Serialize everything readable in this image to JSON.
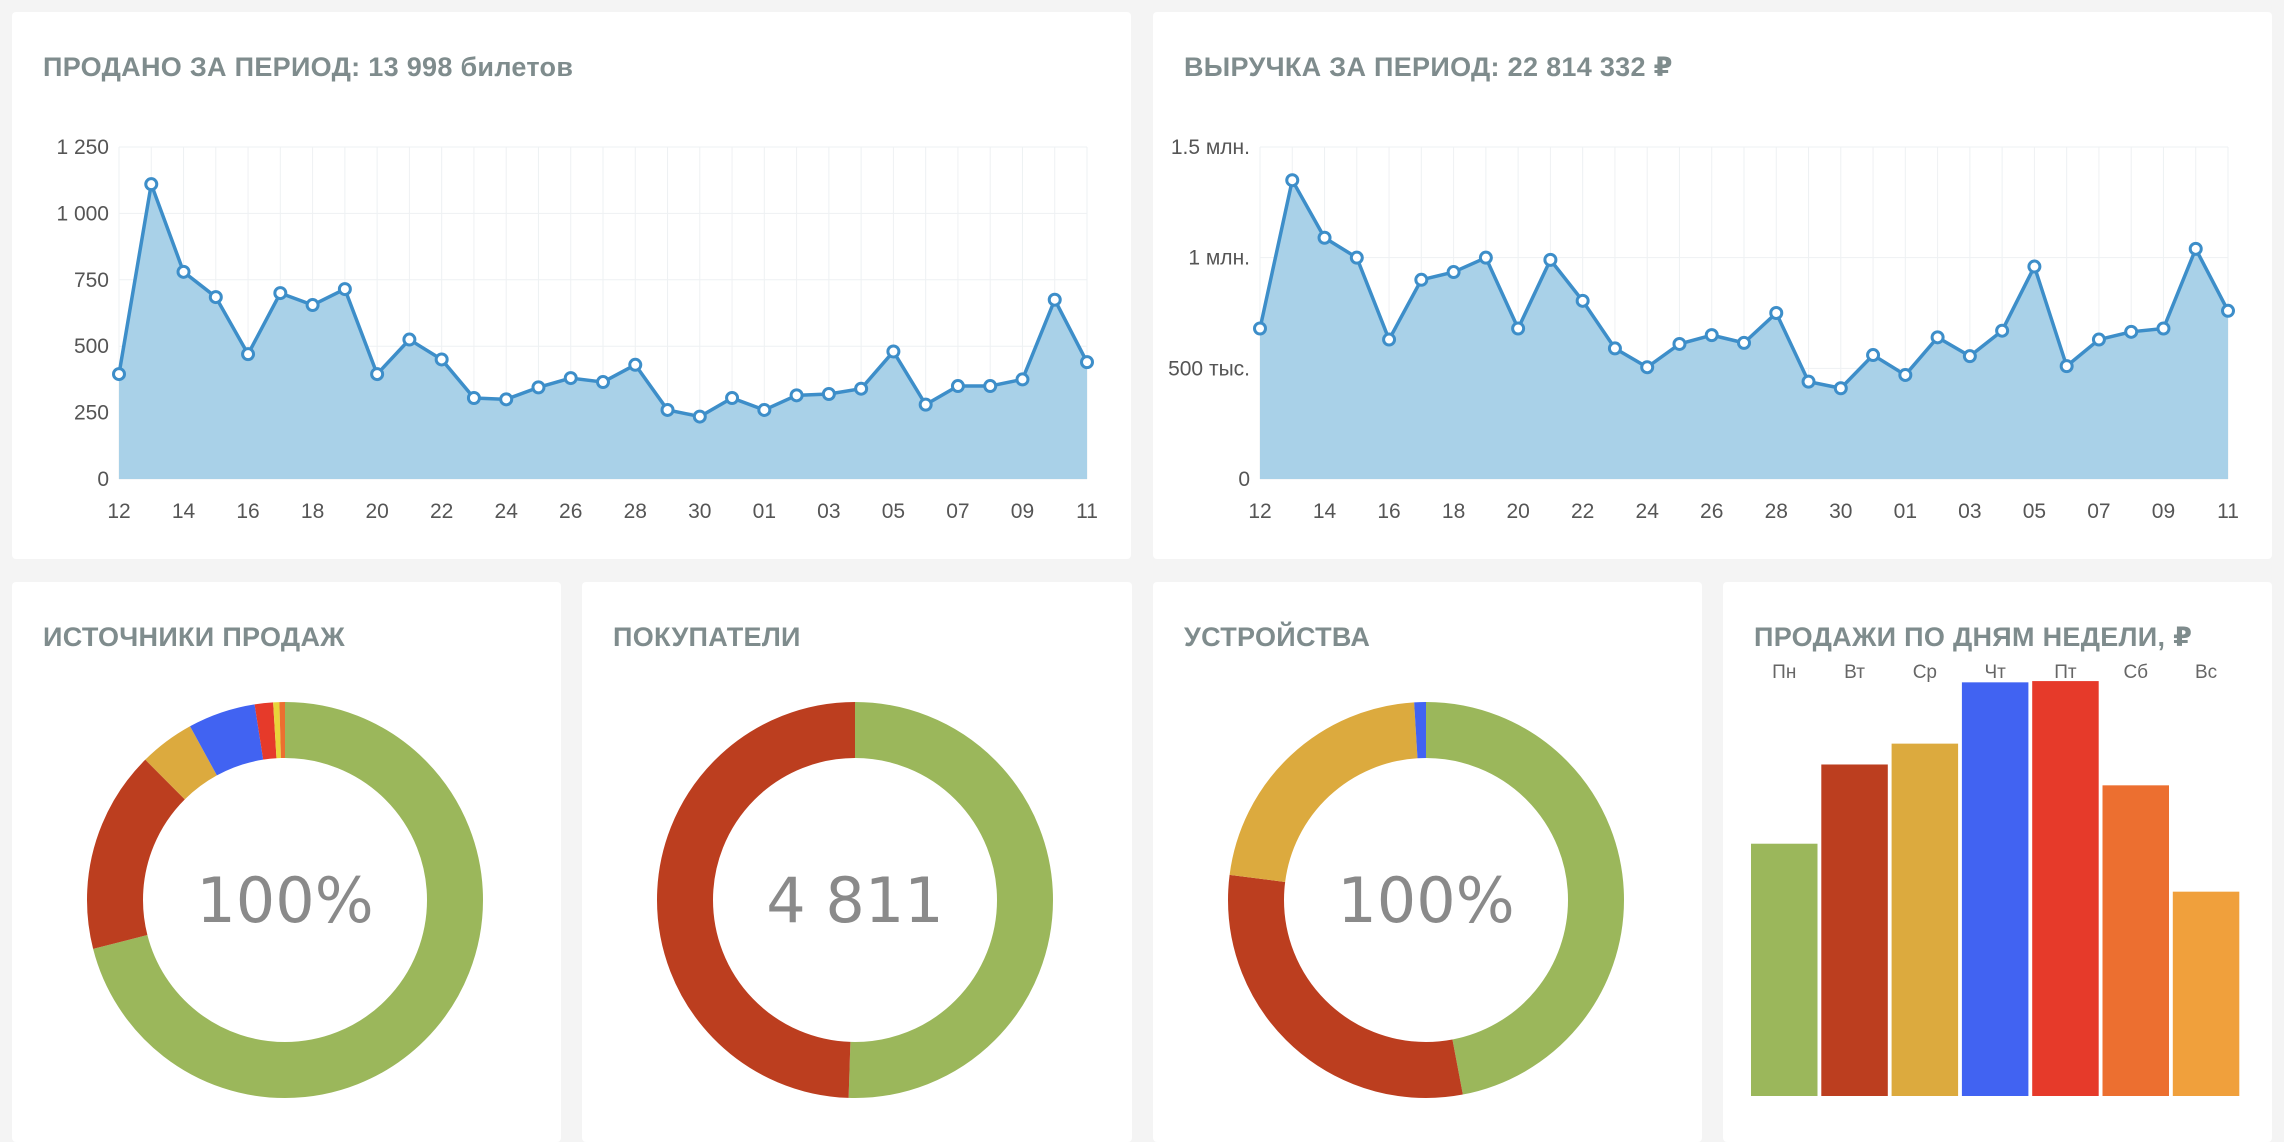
{
  "cards": {
    "tickets": {
      "title": "ПРОДАНО ЗА ПЕРИОД: 13 998 билетов"
    },
    "revenue": {
      "title": "ВЫРУЧКА ЗА ПЕРИОД: 22 814 332 ₽"
    },
    "sources": {
      "title": "ИСТОЧНИКИ ПРОДАЖ",
      "center": "100%"
    },
    "buyers": {
      "title": "ПОКУПАТЕЛИ",
      "center": "4 811"
    },
    "devices": {
      "title": "УСТРОЙСТВА",
      "center": "100%"
    },
    "weekdays": {
      "title": "ПРОДАЖИ ПО ДНЯМ НЕДЕЛИ, ₽"
    }
  },
  "colors": {
    "line": "#3d8ec9",
    "area": "#a9d1e8",
    "green": "#9bb75b",
    "rust": "#bc3e1f",
    "mustard": "#dcaa3e",
    "blue": "#4163f2",
    "red": "#e63a2a",
    "orange": "#ec6f30",
    "amber": "#f0a03c",
    "yellow": "#e8d43a"
  },
  "chart_data": [
    {
      "id": "tickets",
      "type": "area",
      "x_tick_labels": [
        "12",
        "14",
        "16",
        "18",
        "20",
        "22",
        "24",
        "26",
        "28",
        "30",
        "01",
        "03",
        "05",
        "07",
        "09",
        "11"
      ],
      "y_ticks": [
        0,
        250,
        500,
        750,
        1000,
        1250
      ],
      "y_tick_labels": [
        "0",
        "250",
        "500",
        "750",
        "1 000",
        "1 250"
      ],
      "ylim": [
        0,
        1250
      ],
      "grid": true,
      "values": [
        395,
        1110,
        780,
        685,
        470,
        700,
        655,
        715,
        395,
        525,
        450,
        305,
        300,
        345,
        380,
        365,
        430,
        260,
        235,
        305,
        260,
        315,
        320,
        340,
        480,
        280,
        350,
        350,
        375,
        675,
        440
      ]
    },
    {
      "id": "revenue",
      "type": "area",
      "x_tick_labels": [
        "12",
        "14",
        "16",
        "18",
        "20",
        "22",
        "24",
        "26",
        "28",
        "30",
        "01",
        "03",
        "05",
        "07",
        "09",
        "11"
      ],
      "y_ticks": [
        0,
        500000,
        1000000,
        1500000
      ],
      "y_tick_labels": [
        "0",
        "500 тыс.",
        "1 млн.",
        "1.5 млн."
      ],
      "ylim": [
        0,
        1500000
      ],
      "grid": true,
      "values": [
        680000,
        1350000,
        1090000,
        1000000,
        630000,
        900000,
        935000,
        1000000,
        680000,
        990000,
        805000,
        590000,
        505000,
        610000,
        650000,
        615000,
        750000,
        440000,
        410000,
        560000,
        470000,
        640000,
        555000,
        670000,
        960000,
        510000,
        630000,
        665000,
        680000,
        1040000,
        760000
      ]
    },
    {
      "id": "sources",
      "type": "pie",
      "donut": true,
      "values": [
        {
          "color": "green",
          "value": 71.0
        },
        {
          "color": "rust",
          "value": 16.5
        },
        {
          "color": "mustard",
          "value": 4.5
        },
        {
          "color": "blue",
          "value": 5.5
        },
        {
          "color": "red",
          "value": 1.5
        },
        {
          "color": "yellow",
          "value": 0.5
        },
        {
          "color": "orange",
          "value": 0.5
        }
      ]
    },
    {
      "id": "buyers",
      "type": "pie",
      "donut": true,
      "values": [
        {
          "color": "green",
          "value": 50.5
        },
        {
          "color": "rust",
          "value": 49.5
        }
      ]
    },
    {
      "id": "devices",
      "type": "pie",
      "donut": true,
      "values": [
        {
          "color": "green",
          "value": 47.0
        },
        {
          "color": "rust",
          "value": 30.0
        },
        {
          "color": "mustard",
          "value": 22.0
        },
        {
          "color": "blue",
          "value": 1.0
        }
      ]
    },
    {
      "id": "weekdays",
      "type": "bar",
      "categories": [
        "Пн",
        "Вт",
        "Ср",
        "Чт",
        "Пт",
        "Сб",
        "Вс"
      ],
      "values": [
        60.5,
        79.5,
        84.5,
        99.2,
        99.5,
        74.5,
        49.0
      ],
      "colors": [
        "green",
        "rust",
        "mustard",
        "blue",
        "red",
        "orange",
        "amber"
      ],
      "ylim": [
        0,
        100
      ]
    }
  ]
}
